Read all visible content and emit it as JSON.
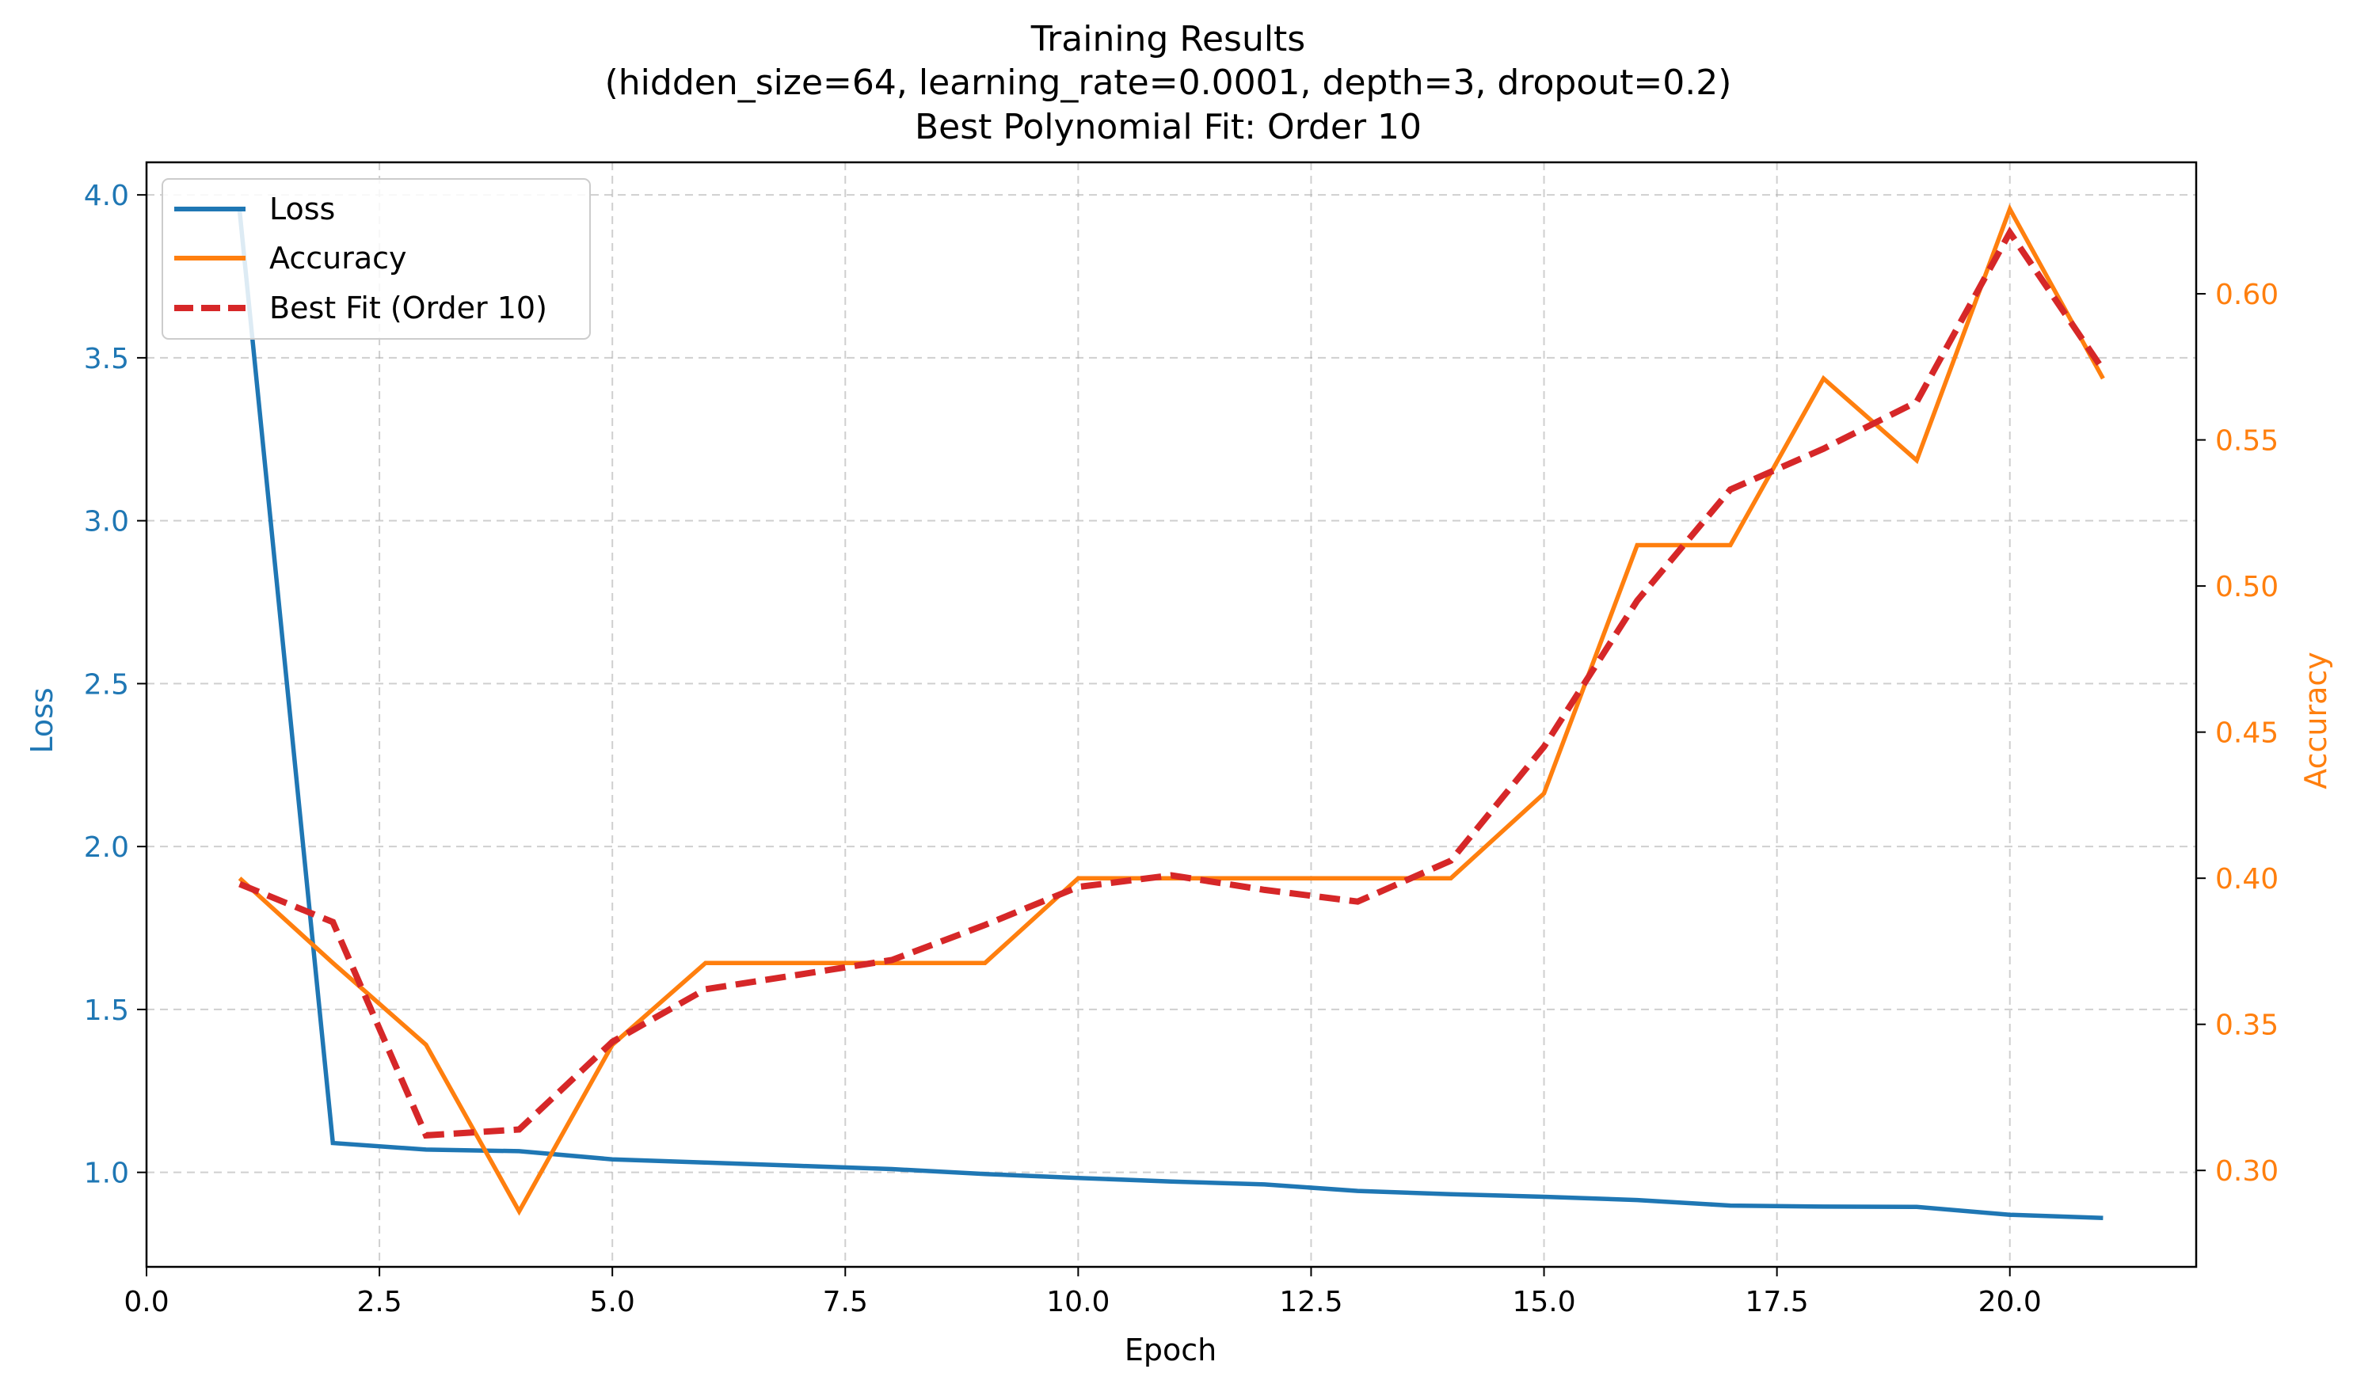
{
  "chart_data": {
    "type": "line",
    "title_lines": [
      "Training Results",
      "(hidden_size=64, learning_rate=0.0001, depth=3, dropout=0.2)",
      "Best Polynomial Fit: Order 10"
    ],
    "xlabel": "Epoch",
    "ylabel_left": "Loss",
    "ylabel_right": "Accuracy",
    "xlim": [
      0,
      22.0
    ],
    "ylim_left": [
      0.71,
      4.1
    ],
    "ylim_right": [
      0.267,
      0.645
    ],
    "xticks": [
      "0.0",
      "2.5",
      "5.0",
      "7.5",
      "10.0",
      "12.5",
      "15.0",
      "17.5",
      "20.0"
    ],
    "xtick_values": [
      0,
      2.5,
      5,
      7.5,
      10,
      12.5,
      15,
      17.5,
      20
    ],
    "yticks_left": [
      "1.0",
      "1.5",
      "2.0",
      "2.5",
      "3.0",
      "3.5",
      "4.0"
    ],
    "ytick_values_left": [
      1.0,
      1.5,
      2.0,
      2.5,
      3.0,
      3.5,
      4.0
    ],
    "yticks_right": [
      "0.30",
      "0.35",
      "0.40",
      "0.45",
      "0.50",
      "0.55",
      "0.60"
    ],
    "ytick_values_right": [
      0.3,
      0.35,
      0.4,
      0.45,
      0.5,
      0.55,
      0.6
    ],
    "grid": true,
    "legend_position": "top-left",
    "colors": {
      "loss": "#1f77b4",
      "accuracy": "#ff7f0e",
      "fit": "#d62728"
    },
    "x": [
      1,
      2,
      3,
      4,
      5,
      6,
      7,
      8,
      9,
      10,
      11,
      12,
      13,
      14,
      15,
      16,
      17,
      18,
      19,
      20,
      21
    ],
    "series": [
      {
        "name": "Loss",
        "axis": "left",
        "style": "solid",
        "values": [
          3.95,
          1.09,
          1.07,
          1.065,
          1.04,
          1.03,
          1.02,
          1.01,
          0.995,
          0.983,
          0.972,
          0.963,
          0.943,
          0.933,
          0.925,
          0.915,
          0.898,
          0.895,
          0.894,
          0.87,
          0.86
        ]
      },
      {
        "name": "Accuracy",
        "axis": "right",
        "style": "solid",
        "values": [
          0.4,
          0.371,
          0.343,
          0.286,
          0.343,
          0.371,
          0.371,
          0.371,
          0.371,
          0.4,
          0.4,
          0.4,
          0.4,
          0.4,
          0.429,
          0.514,
          0.514,
          0.571,
          0.543,
          0.629,
          0.571
        ]
      },
      {
        "name": "Best Fit (Order 10)",
        "axis": "right",
        "style": "dashed",
        "values": [
          0.398,
          0.385,
          0.312,
          0.314,
          0.344,
          0.362,
          0.367,
          0.372,
          0.384,
          0.397,
          0.401,
          0.396,
          0.392,
          0.406,
          0.445,
          0.495,
          0.533,
          0.547,
          0.563,
          0.621,
          0.574
        ]
      }
    ]
  }
}
